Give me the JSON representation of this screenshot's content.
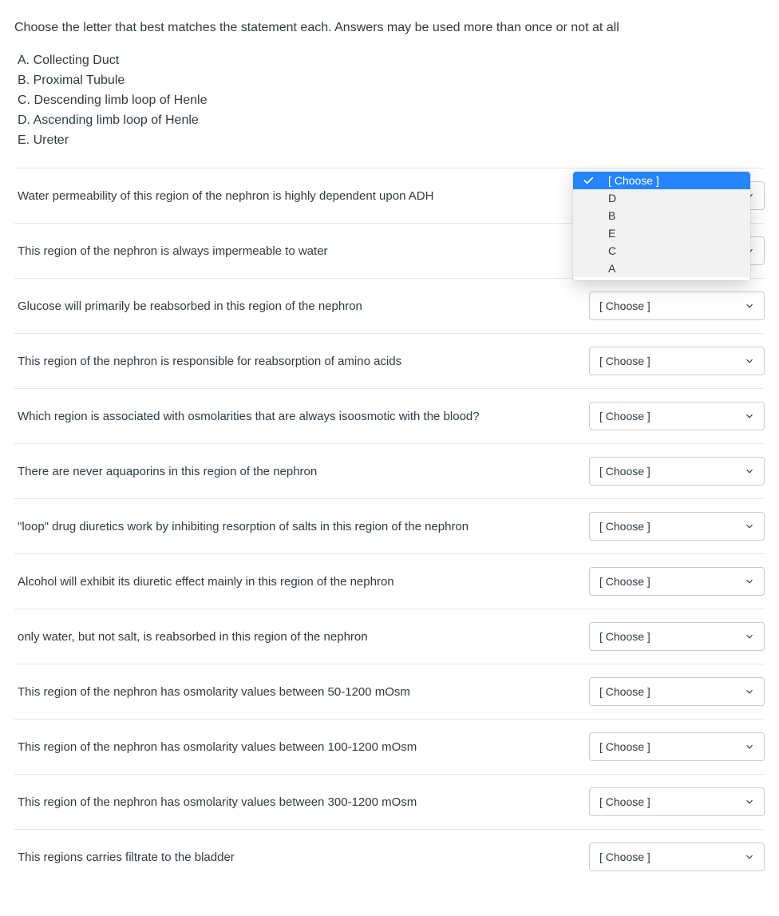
{
  "instructions": "Choose the letter that best matches the statement  each. Answers may be used more than once or not at all",
  "answer_options": [
    "A. Collecting Duct",
    "B. Proximal Tubule",
    "C. Descending limb loop of Henle",
    "D. Ascending limb loop of Henle",
    "E. Ureter"
  ],
  "select_placeholder": "[ Choose ]",
  "dropdown": {
    "options": [
      "[ Choose ]",
      "D",
      "B",
      "E",
      "C",
      "A"
    ],
    "selected_index": 0,
    "background_color": "#f2f2f2",
    "selected_bg_color": "#2684ff",
    "selected_text_color": "#ffffff"
  },
  "questions": [
    {
      "text": "Water permeability of this region of the nephron is highly dependent upon ADH",
      "dropdown_open": true
    },
    {
      "text": "This region of the nephron is always impermeable to water",
      "dropdown_open": false
    },
    {
      "text": "Glucose will primarily be reabsorbed in this region of the nephron",
      "dropdown_open": false
    },
    {
      "text": "This region of the nephron is responsible for reabsorption of amino acids",
      "dropdown_open": false
    },
    {
      "text": "Which region is associated with osmolarities that are always isoosmotic with the blood?",
      "dropdown_open": false
    },
    {
      "text": "There are never aquaporins in this region of the nephron",
      "dropdown_open": false
    },
    {
      "text": "\"loop\" drug diuretics work by inhibiting resorption of salts in this region of the nephron",
      "dropdown_open": false
    },
    {
      "text": "Alcohol will exhibit its diuretic effect mainly in this region of the nephron",
      "dropdown_open": false
    },
    {
      "text": "only water, but not salt, is reabsorbed in this region of the nephron",
      "dropdown_open": false
    },
    {
      "text": "This region of the nephron has osmolarity values between 50-1200 mOsm",
      "dropdown_open": false
    },
    {
      "text": "This region of the nephron has osmolarity values between 100-1200 mOsm",
      "dropdown_open": false
    },
    {
      "text": "This region of the nephron has osmolarity values between 300-1200 mOsm",
      "dropdown_open": false
    },
    {
      "text": "This regions carries filtrate to the bladder",
      "dropdown_open": false
    }
  ],
  "colors": {
    "text": "#2d3b45",
    "border": "#e5e5e5",
    "select_border": "#c7cdd1",
    "background": "#ffffff"
  }
}
